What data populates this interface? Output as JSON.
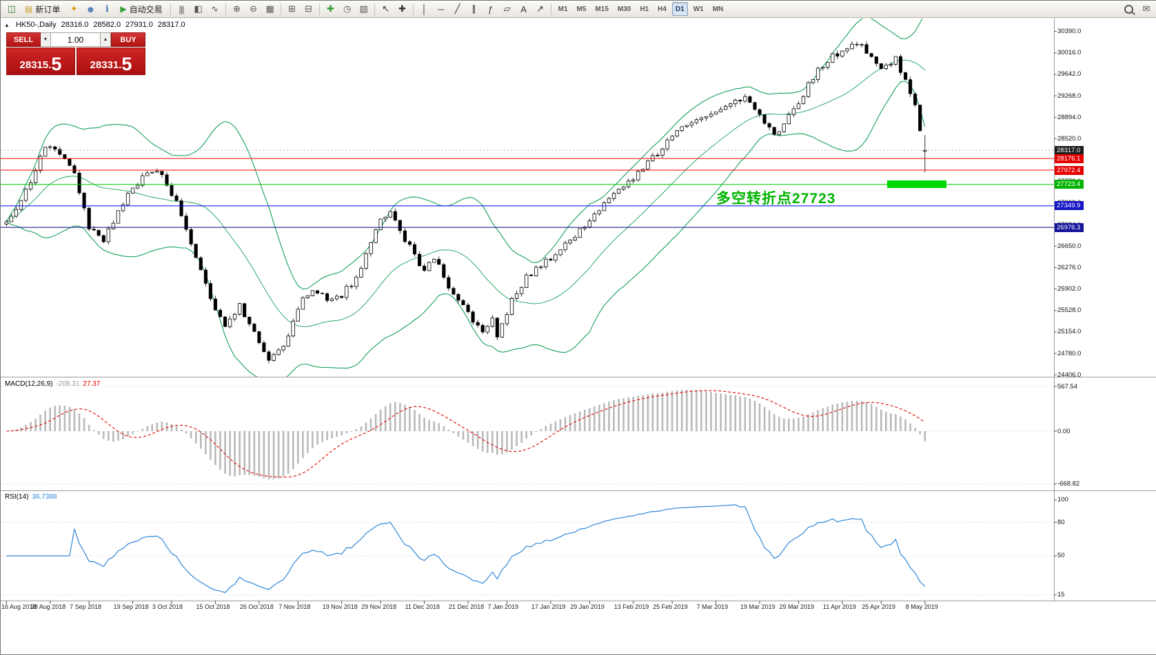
{
  "toolbar": {
    "items": [
      {
        "t": "icon",
        "name": "new-chart-icon",
        "g": "◫",
        "c": "#3a7d3a"
      },
      {
        "t": "button",
        "name": "new-order-button",
        "g": "▤",
        "gc": "#c99b22",
        "label": "新订单"
      },
      {
        "t": "icon",
        "name": "metaeditor-icon",
        "g": "✦",
        "c": "#d9a012"
      },
      {
        "t": "icon",
        "name": "community-icon",
        "g": "☻",
        "c": "#4a78b5"
      },
      {
        "t": "icon",
        "name": "help-icon",
        "g": "ℹ",
        "c": "#4a78b5"
      },
      {
        "t": "button",
        "name": "autotrading-button",
        "g": "▶",
        "gc": "#2f9e2f",
        "label": "自动交易"
      },
      {
        "t": "sep"
      },
      {
        "t": "icon",
        "name": "bar-chart-type-icon",
        "g": "|||",
        "c": "#555"
      },
      {
        "t": "icon",
        "name": "candlestick-chart-type-icon",
        "g": "◧",
        "c": "#555"
      },
      {
        "t": "icon",
        "name": "line-chart-type-icon",
        "g": "∿",
        "c": "#555"
      },
      {
        "t": "sep"
      },
      {
        "t": "icon",
        "name": "zoom-in-icon",
        "g": "⊕",
        "c": "#555"
      },
      {
        "t": "icon",
        "name": "zoom-out-icon",
        "g": "⊖",
        "c": "#555"
      },
      {
        "t": "icon",
        "name": "grid-icon",
        "g": "▦",
        "c": "#555"
      },
      {
        "t": "sep"
      },
      {
        "t": "icon",
        "name": "tile-windows-icon",
        "g": "⊞",
        "c": "#555"
      },
      {
        "t": "icon",
        "name": "cascade-windows-icon",
        "g": "⊟",
        "c": "#555"
      },
      {
        "t": "sep"
      },
      {
        "t": "icon",
        "name": "indicators-icon",
        "g": "✚",
        "c": "#2f9e2f"
      },
      {
        "t": "icon",
        "name": "periods-icon",
        "g": "◷",
        "c": "#555"
      },
      {
        "t": "icon",
        "name": "templates-icon",
        "g": "▨",
        "c": "#555"
      },
      {
        "t": "sep"
      },
      {
        "t": "icon",
        "name": "cursor-icon",
        "g": "↖",
        "c": "#333"
      },
      {
        "t": "icon",
        "name": "crosshair-icon",
        "g": "✚",
        "c": "#333"
      },
      {
        "t": "sep"
      },
      {
        "t": "icon",
        "name": "vertical-line-icon",
        "g": "│",
        "c": "#333"
      },
      {
        "t": "icon",
        "name": "horizontal-line-icon",
        "g": "─",
        "c": "#333"
      },
      {
        "t": "icon",
        "name": "trendline-icon",
        "g": "╱",
        "c": "#333"
      },
      {
        "t": "icon",
        "name": "channel-icon",
        "g": "∥",
        "c": "#333"
      },
      {
        "t": "icon",
        "name": "fibonacci-icon",
        "g": "ƒ",
        "c": "#333"
      },
      {
        "t": "icon",
        "name": "shapes-icon",
        "g": "▱",
        "c": "#333"
      },
      {
        "t": "icon",
        "name": "text-label-icon",
        "g": "A",
        "c": "#333"
      },
      {
        "t": "icon",
        "name": "arrows-icon",
        "g": "↗",
        "c": "#333"
      },
      {
        "t": "sep"
      },
      {
        "t": "tfgroup"
      },
      {
        "t": "spacer"
      },
      {
        "t": "mag",
        "name": "search-icon"
      },
      {
        "t": "icon",
        "name": "messages-icon",
        "g": "✉",
        "c": "#555"
      }
    ],
    "timeframes": [
      "M1",
      "M5",
      "M15",
      "M30",
      "H1",
      "H4",
      "D1",
      "W1",
      "MN"
    ],
    "active_timeframe": "D1"
  },
  "chart": {
    "collapse_glyph": "▲",
    "symbol_label": "HK50-,Daily",
    "ohlc": {
      "open": "28316.0",
      "high": "28582.0",
      "low": "27931.0",
      "close": "28317.0"
    },
    "levels": [
      {
        "name": "current-price-box",
        "label": "28317.0",
        "value": 28317.0,
        "color": "#1c1c1c"
      },
      {
        "name": "resistance-price-box-1",
        "label": "28176.1",
        "value": 28176.1,
        "color": "#e60000"
      },
      {
        "name": "resistance-price-box-2",
        "label": "27972.4",
        "value": 27972.4,
        "color": "#e60000"
      },
      {
        "name": "pivot-price-box",
        "label": "27723.4",
        "value": 27723.4,
        "color": "#00b400"
      },
      {
        "name": "support-price-box-1",
        "label": "27349.9",
        "value": 27349.9,
        "color": "#1414c8"
      },
      {
        "name": "support-price-box-2",
        "label": "26976.3",
        "value": 26976.3,
        "color": "#14149b"
      }
    ],
    "annotation": {
      "text": "多空转折点27723",
      "color": "#00b400"
    }
  },
  "trade": {
    "sell_label": "SELL",
    "buy_label": "BUY",
    "volume": "1.00",
    "dropdown_glyph": "▼",
    "spin_up_glyph": "▲",
    "sell_price": {
      "main": "28315.",
      "big": "5"
    },
    "buy_price": {
      "main": "28331.",
      "big": "5"
    }
  },
  "chart_data": {
    "type": "candlestick",
    "symbol": "HK50",
    "period": "Daily",
    "bars": 190,
    "seed": 20190509,
    "noise": 55,
    "anchors": [
      [
        0,
        27050
      ],
      [
        2,
        27300
      ],
      [
        5,
        27800
      ],
      [
        8,
        28350
      ],
      [
        11,
        28300
      ],
      [
        14,
        27900
      ],
      [
        17,
        27000
      ],
      [
        20,
        26750
      ],
      [
        23,
        27250
      ],
      [
        26,
        27650
      ],
      [
        29,
        27950
      ],
      [
        32,
        27900
      ],
      [
        35,
        27400
      ],
      [
        38,
        26700
      ],
      [
        41,
        26000
      ],
      [
        43,
        25500
      ],
      [
        45,
        25250
      ],
      [
        48,
        25600
      ],
      [
        52,
        24950
      ],
      [
        54,
        24700
      ],
      [
        57,
        24850
      ],
      [
        60,
        25600
      ],
      [
        63,
        25900
      ],
      [
        66,
        25750
      ],
      [
        69,
        25800
      ],
      [
        72,
        26100
      ],
      [
        75,
        26700
      ],
      [
        77,
        27150
      ],
      [
        79,
        27250
      ],
      [
        81,
        26900
      ],
      [
        84,
        26500
      ],
      [
        86,
        26200
      ],
      [
        88,
        26450
      ],
      [
        91,
        25950
      ],
      [
        95,
        25450
      ],
      [
        98,
        25100
      ],
      [
        100,
        25450
      ],
      [
        101,
        25050
      ],
      [
        104,
        25700
      ],
      [
        107,
        26100
      ],
      [
        110,
        26300
      ],
      [
        112,
        26450
      ],
      [
        115,
        26650
      ],
      [
        118,
        26900
      ],
      [
        120,
        27100
      ],
      [
        123,
        27400
      ],
      [
        126,
        27600
      ],
      [
        129,
        27850
      ],
      [
        132,
        28100
      ],
      [
        135,
        28350
      ],
      [
        137,
        28600
      ],
      [
        140,
        28750
      ],
      [
        143,
        28900
      ],
      [
        148,
        29050
      ],
      [
        152,
        29250
      ],
      [
        155,
        28950
      ],
      [
        158,
        28550
      ],
      [
        160,
        28800
      ],
      [
        163,
        29150
      ],
      [
        166,
        29600
      ],
      [
        169,
        29900
      ],
      [
        172,
        30050
      ],
      [
        175,
        30200
      ],
      [
        178,
        29950
      ],
      [
        180,
        29750
      ],
      [
        183,
        29900
      ],
      [
        185,
        29550
      ],
      [
        187,
        29100
      ],
      [
        188,
        28650
      ],
      [
        189,
        28317
      ]
    ],
    "last_bar": {
      "open": 28316,
      "high": 28582,
      "low": 27931,
      "close": 28317
    },
    "x_labels": [
      "16 Aug 2018",
      "28 Aug 2018",
      "7 Sep 2018",
      "19 Sep 2018",
      "3 Oct 2018",
      "15 Oct 2018",
      "26 Oct 2018",
      "7 Nov 2018",
      "19 Nov 2018",
      "29 Nov 2018",
      "11 Dec 2018",
      "21 Dec 2018",
      "7 Jan 2019",
      "17 Jan 2019",
      "29 Jan 2019",
      "13 Feb 2019",
      "25 Feb 2019",
      "7 Mar 2019",
      "19 Mar 2019",
      "29 Mar 2019",
      "11 Apr 2019",
      "25 Apr 2019",
      "8 May 2019"
    ],
    "y_ticks": {
      "start": 24406,
      "step": 374,
      "end": 30390
    },
    "overlays": {
      "bollinger": {
        "period": 20,
        "deviation": 2,
        "color": "#15a05a"
      }
    },
    "h_lines": [
      {
        "value": 28317.0,
        "color": "#b8b8b8",
        "dash": "2 3"
      },
      {
        "value": 28176.1,
        "color": "#ff0000"
      },
      {
        "value": 27972.4,
        "color": "#ff0000"
      },
      {
        "value": 27723.4,
        "color": "#00c800"
      },
      {
        "value": 27349.9,
        "color": "#0000ff"
      },
      {
        "value": 26976.3,
        "color": "#000080"
      }
    ]
  },
  "macd": {
    "label": "MACD(12,26,9)",
    "value_main": "-208.31",
    "value_signal": "27.37",
    "axis": [
      "567.54",
      "0.00",
      "-668.82"
    ],
    "axis_values": [
      567.54,
      0,
      -668.82
    ],
    "colors": {
      "histogram": "#b9b9b9",
      "signal": "#e00000"
    }
  },
  "rsi": {
    "label": "RSI(14)",
    "value": "36.7388",
    "period": 14,
    "axis": [
      "100",
      "80",
      "50",
      "15"
    ],
    "axis_values": [
      100,
      80,
      50,
      15
    ],
    "color": "#2f87d8"
  }
}
